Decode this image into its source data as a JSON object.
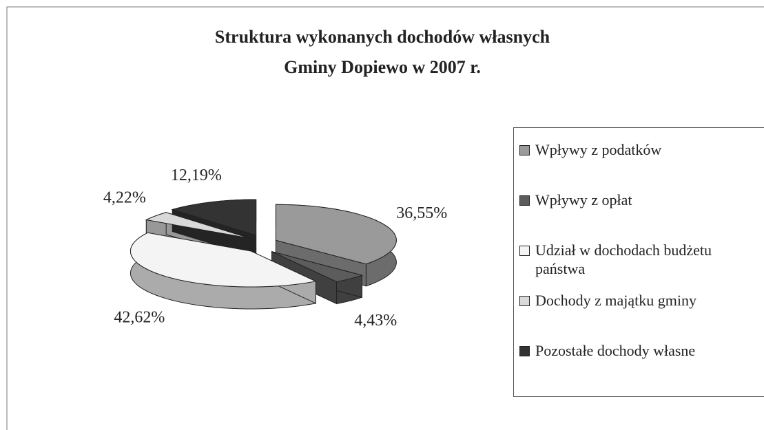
{
  "chart_data": {
    "type": "pie",
    "title": [
      "Struktura wykonanych dochodów własnych",
      "Gminy Dopiewo w 2007 r."
    ],
    "categories": [
      "Wpływy z podatków",
      "Wpływy z opłat",
      "Udział w dochodach budżetu państwa",
      "Dochody z majątku gminy",
      "Pozostałe dochody własne"
    ],
    "values": [
      36.55,
      4.43,
      42.62,
      4.22,
      12.19
    ],
    "value_labels": [
      "36,55%",
      "4,43%",
      "42,62%",
      "4,22%",
      "12,19%"
    ],
    "colors": [
      "#9a9a9a",
      "#5c5c5c",
      "#f4f4f4",
      "#d9d9d9",
      "#333333"
    ],
    "legend": "right"
  }
}
